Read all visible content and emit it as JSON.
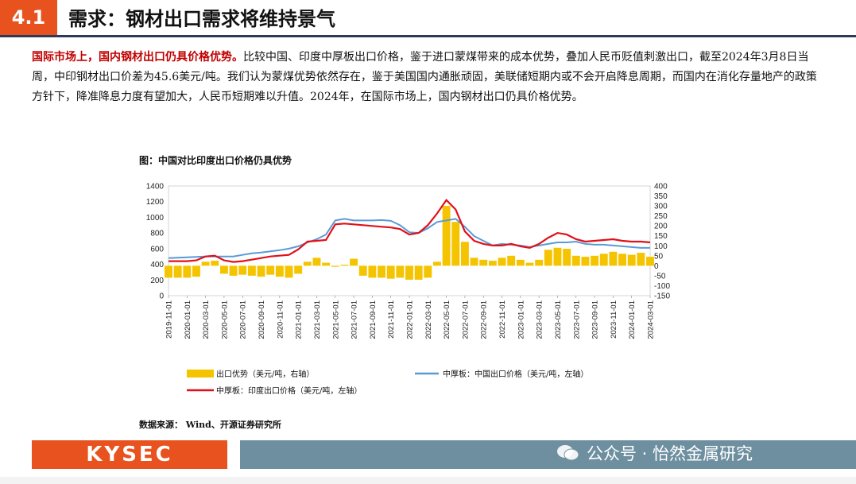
{
  "header": {
    "section_number": "4.1",
    "title": "需求：钢材出口需求将维持景气"
  },
  "paragraph": {
    "highlight": "国际市场上，国内钢材出口仍具价格优势。",
    "body": "比较中国、印度中厚板出口价格，鉴于进口蒙煤带来的成本优势，叠加人民币贬值刺激出口，截至2024年3月8日当周，中印钢材出口价差为45.6美元/吨。我们认为蒙煤优势依然存在，鉴于美国国内通胀顽固，美联储短期内或不会开启降息周期，而国内在消化存量地产的政策方针下，降准降息力度有望加大，人民币短期难以升值。2024年，在国际市场上，国内钢材出口仍具价格优势。"
  },
  "chart_title": "图：中国对比印度出口价格仍具优势",
  "source": "数据来源：  Wind、开源证券研究所",
  "footer": {
    "logo": "KYSEC",
    "watermark": "公众号 · 怡然金属研究"
  },
  "colors": {
    "accent": "#e8521e",
    "footer_bar": "#6d8fa0",
    "bar": "#f5c400",
    "china_line": "#5b9bd5",
    "india_line": "#e0101a"
  },
  "chart_data": {
    "type": "bar+line",
    "title": "图：中国对比印度出口价格仍具优势",
    "left_axis": {
      "ylim": [
        0,
        1400
      ],
      "ticks": [
        "0",
        "200",
        "400",
        "600",
        "800",
        "1000",
        "1200",
        "1400"
      ]
    },
    "right_axis": {
      "ylim": [
        -150,
        400
      ],
      "ticks": [
        "-150",
        "-100",
        "-50",
        "0",
        "50",
        "100",
        "150",
        "200",
        "250",
        "300",
        "350",
        "400"
      ]
    },
    "x_ticks": [
      "2019-11-01",
      "2020-01-01",
      "2020-03-01",
      "2020-05-01",
      "2020-07-01",
      "2020-09-01",
      "2020-11-01",
      "2021-01-01",
      "2021-03-01",
      "2021-05-01",
      "2021-07-01",
      "2021-09-01",
      "2021-11-01",
      "2022-01-01",
      "2022-03-01",
      "2022-05-01",
      "2022-07-01",
      "2022-09-01",
      "2022-11-01",
      "2023-01-01",
      "2023-03-01",
      "2023-05-01",
      "2023-07-01",
      "2023-09-01",
      "2023-11-01",
      "2024-01-01",
      "2024-03-01"
    ],
    "legend": [
      "出口优势（美元/吨，右轴）",
      "中厚板：中国出口价格（美元/吨，左轴）",
      "中厚板：印度出口价格（美元/吨，左轴）"
    ],
    "months": [
      "2019-11",
      "2019-12",
      "2020-01",
      "2020-02",
      "2020-03",
      "2020-04",
      "2020-05",
      "2020-06",
      "2020-07",
      "2020-08",
      "2020-09",
      "2020-10",
      "2020-11",
      "2020-12",
      "2021-01",
      "2021-02",
      "2021-03",
      "2021-04",
      "2021-05",
      "2021-06",
      "2021-07",
      "2021-08",
      "2021-09",
      "2021-10",
      "2021-11",
      "2021-12",
      "2022-01",
      "2022-02",
      "2022-03",
      "2022-04",
      "2022-05",
      "2022-06",
      "2022-07",
      "2022-08",
      "2022-09",
      "2022-10",
      "2022-11",
      "2022-12",
      "2023-01",
      "2023-02",
      "2023-03",
      "2023-04",
      "2023-05",
      "2023-06",
      "2023-07",
      "2023-08",
      "2023-09",
      "2023-10",
      "2023-11",
      "2023-12",
      "2024-01",
      "2024-02",
      "2024-03"
    ],
    "series": [
      {
        "name": "出口优势（美元/吨，右轴）",
        "axis": "right",
        "kind": "bar",
        "values": [
          -60,
          -60,
          -60,
          -55,
          20,
          25,
          -40,
          -50,
          -45,
          -50,
          -55,
          -45,
          -55,
          -60,
          -40,
          20,
          40,
          15,
          -5,
          5,
          35,
          -50,
          -60,
          -60,
          -65,
          -60,
          -70,
          -70,
          -60,
          20,
          300,
          220,
          120,
          40,
          30,
          25,
          40,
          50,
          30,
          15,
          30,
          80,
          90,
          85,
          50,
          45,
          50,
          60,
          70,
          60,
          55,
          65,
          45
        ]
      },
      {
        "name": "中厚板：中国出口价格（美元/吨，左轴）",
        "axis": "left",
        "kind": "line",
        "values": [
          480,
          485,
          490,
          495,
          500,
          500,
          500,
          500,
          520,
          540,
          550,
          565,
          580,
          600,
          630,
          680,
          720,
          780,
          960,
          980,
          960,
          960,
          960,
          965,
          955,
          900,
          810,
          800,
          860,
          940,
          960,
          980,
          880,
          760,
          700,
          640,
          660,
          650,
          640,
          620,
          640,
          660,
          680,
          680,
          690,
          660,
          650,
          650,
          640,
          630,
          620,
          610,
          610
        ]
      },
      {
        "name": "中厚板：印度出口价格（美元/吨，左轴）",
        "axis": "left",
        "kind": "line",
        "values": [
          440,
          440,
          440,
          450,
          500,
          510,
          450,
          430,
          440,
          460,
          480,
          500,
          510,
          520,
          590,
          690,
          700,
          710,
          910,
          920,
          910,
          900,
          890,
          880,
          870,
          850,
          780,
          800,
          900,
          1050,
          1220,
          1100,
          820,
          700,
          660,
          640,
          640,
          660,
          630,
          610,
          660,
          740,
          800,
          780,
          720,
          690,
          700,
          710,
          720,
          700,
          690,
          690,
          680
        ]
      }
    ]
  }
}
